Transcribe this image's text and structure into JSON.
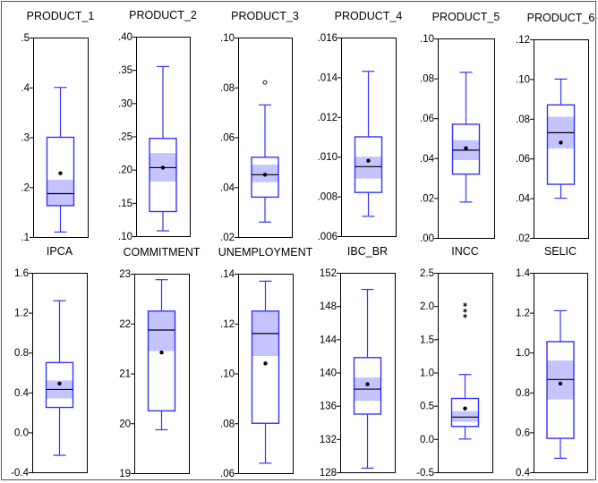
{
  "chart_data": [
    {
      "type": "box",
      "title": "PRODUCT_1",
      "ylim": [
        0.1,
        0.5
      ],
      "ticks": [
        0.1,
        0.2,
        0.3,
        0.4,
        0.5
      ],
      "tick_labels": [
        ".1",
        ".2",
        ".3",
        ".4",
        ".5"
      ],
      "whisker_low": 0.11,
      "q1": 0.163,
      "median": 0.187,
      "q3": 0.3,
      "whisker_high": 0.4,
      "mean": 0.228,
      "median_ci": [
        0.163,
        0.215
      ],
      "outliers": []
    },
    {
      "type": "box",
      "title": "PRODUCT_2",
      "ylim": [
        0.1,
        0.4
      ],
      "ticks": [
        0.1,
        0.15,
        0.2,
        0.25,
        0.3,
        0.35,
        0.4
      ],
      "tick_labels": [
        ".10",
        ".15",
        ".20",
        ".25",
        ".30",
        ".35",
        ".40"
      ],
      "whisker_low": 0.108,
      "q1": 0.137,
      "median": 0.203,
      "q3": 0.247,
      "whisker_high": 0.355,
      "mean": 0.203,
      "median_ci": [
        0.182,
        0.225
      ],
      "outliers": []
    },
    {
      "type": "box",
      "title": "PRODUCT_3",
      "ylim": [
        0.02,
        0.1
      ],
      "ticks": [
        0.02,
        0.04,
        0.06,
        0.08,
        0.1
      ],
      "tick_labels": [
        ".02",
        ".04",
        ".06",
        ".08",
        ".10"
      ],
      "whisker_low": 0.026,
      "q1": 0.036,
      "median": 0.045,
      "q3": 0.052,
      "whisker_high": 0.073,
      "mean": 0.045,
      "median_ci": [
        0.042,
        0.049
      ],
      "outliers": [
        {
          "value": 0.082,
          "marker": "circle"
        }
      ]
    },
    {
      "type": "box",
      "title": "PRODUCT_4",
      "ylim": [
        0.006,
        0.016
      ],
      "ticks": [
        0.006,
        0.008,
        0.01,
        0.012,
        0.014,
        0.016
      ],
      "tick_labels": [
        ".006",
        ".008",
        ".010",
        ".012",
        ".014",
        ".016"
      ],
      "whisker_low": 0.007,
      "q1": 0.0082,
      "median": 0.0095,
      "q3": 0.011,
      "whisker_high": 0.0143,
      "mean": 0.0098,
      "median_ci": [
        0.0089,
        0.01
      ],
      "outliers": []
    },
    {
      "type": "box",
      "title": "PRODUCT_5",
      "ylim": [
        0.0,
        0.1
      ],
      "ticks": [
        0.0,
        0.02,
        0.04,
        0.06,
        0.08,
        0.1
      ],
      "tick_labels": [
        ".00",
        ".02",
        ".04",
        ".06",
        ".08",
        ".10"
      ],
      "whisker_low": 0.018,
      "q1": 0.032,
      "median": 0.044,
      "q3": 0.057,
      "whisker_high": 0.083,
      "mean": 0.045,
      "median_ci": [
        0.039,
        0.049
      ],
      "outliers": []
    },
    {
      "type": "box",
      "title": "PRODUCT_6",
      "ylim": [
        0.02,
        0.12
      ],
      "ticks": [
        0.02,
        0.04,
        0.06,
        0.08,
        0.1,
        0.12
      ],
      "tick_labels": [
        ".02",
        ".04",
        ".06",
        ".08",
        ".10",
        ".12"
      ],
      "whisker_low": 0.04,
      "q1": 0.047,
      "median": 0.073,
      "q3": 0.087,
      "whisker_high": 0.1,
      "mean": 0.068,
      "median_ci": [
        0.065,
        0.081
      ],
      "outliers": []
    },
    {
      "type": "box",
      "title": "IPCA",
      "ylim": [
        -0.4,
        1.6
      ],
      "ticks": [
        -0.4,
        0.0,
        0.4,
        0.8,
        1.2,
        1.6
      ],
      "tick_labels": [
        "-0.4",
        "0.0",
        "0.4",
        "0.8",
        "1.2",
        "1.6"
      ],
      "whisker_low": -0.23,
      "q1": 0.25,
      "median": 0.43,
      "q3": 0.7,
      "whisker_high": 1.32,
      "mean": 0.49,
      "median_ci": [
        0.34,
        0.52
      ],
      "outliers": []
    },
    {
      "type": "box",
      "title": "COMMITMENT",
      "ylim": [
        19,
        23
      ],
      "ticks": [
        19,
        20,
        21,
        22,
        23
      ],
      "tick_labels": [
        "19",
        "20",
        "21",
        "22",
        "23"
      ],
      "whisker_low": 19.87,
      "q1": 20.25,
      "median": 21.87,
      "q3": 22.25,
      "whisker_high": 22.88,
      "mean": 21.42,
      "median_ci": [
        21.45,
        22.25
      ],
      "outliers": []
    },
    {
      "type": "box",
      "title": "UNEMPLOYMENT",
      "ylim": [
        0.06,
        0.14
      ],
      "ticks": [
        0.06,
        0.08,
        0.1,
        0.12,
        0.14
      ],
      "tick_labels": [
        ".06",
        ".08",
        ".10",
        ".12",
        ".14"
      ],
      "whisker_low": 0.064,
      "q1": 0.08,
      "median": 0.116,
      "q3": 0.125,
      "whisker_high": 0.137,
      "mean": 0.104,
      "median_ci": [
        0.107,
        0.125
      ],
      "outliers": []
    },
    {
      "type": "box",
      "title": "IBC_BR",
      "ylim": [
        128,
        152
      ],
      "ticks": [
        128,
        132,
        136,
        140,
        144,
        148,
        152
      ],
      "tick_labels": [
        "128",
        "132",
        "136",
        "140",
        "144",
        "148",
        "152"
      ],
      "whisker_low": 128.5,
      "q1": 135.0,
      "median": 138.0,
      "q3": 141.8,
      "whisker_high": 150.0,
      "mean": 138.6,
      "median_ci": [
        136.6,
        139.4
      ],
      "outliers": []
    },
    {
      "type": "box",
      "title": "INCC",
      "ylim": [
        -0.5,
        2.5
      ],
      "ticks": [
        -0.5,
        0.0,
        0.5,
        1.0,
        1.5,
        2.0,
        2.5
      ],
      "tick_labels": [
        "-0.5",
        "0.0",
        "0.5",
        "1.0",
        "1.5",
        "2.0",
        "2.5"
      ],
      "whisker_low": 0.0,
      "q1": 0.19,
      "median": 0.33,
      "q3": 0.61,
      "whisker_high": 0.97,
      "mean": 0.46,
      "median_ci": [
        0.26,
        0.42
      ],
      "outliers": [
        {
          "value": 1.85,
          "marker": "asterisk"
        },
        {
          "value": 1.93,
          "marker": "asterisk"
        },
        {
          "value": 2.02,
          "marker": "asterisk"
        }
      ]
    },
    {
      "type": "box",
      "title": "SELIC",
      "ylim": [
        0.4,
        1.4
      ],
      "ticks": [
        0.4,
        0.6,
        0.8,
        1.0,
        1.2,
        1.4
      ],
      "tick_labels": [
        "0.4",
        "0.6",
        "0.8",
        "1.0",
        "1.2",
        "1.4"
      ],
      "whisker_low": 0.47,
      "q1": 0.57,
      "median": 0.865,
      "q3": 1.055,
      "whisker_high": 1.21,
      "mean": 0.845,
      "median_ci": [
        0.765,
        0.96
      ],
      "outliers": []
    }
  ],
  "colors": {
    "box": "#3434ff",
    "notch_fill": "#c4c4ff",
    "median": "#000000",
    "mean": "#000000",
    "frame": "#000000",
    "text": "#000000"
  }
}
